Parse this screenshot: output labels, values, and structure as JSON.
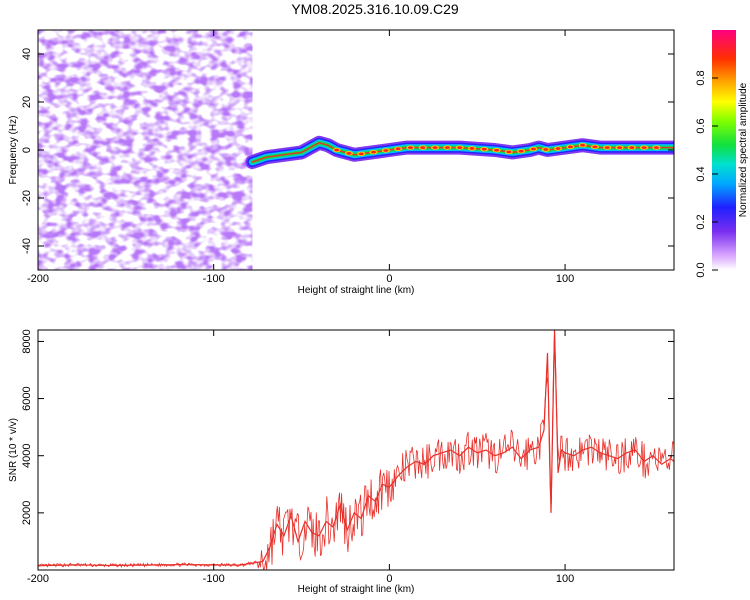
{
  "title": "YM08.2025.316.10.09.C29",
  "colors": {
    "snr_line": "#e8302a",
    "axis": "#000000",
    "noise": "#7a2ff0",
    "ridge_core": "#e8302a"
  },
  "chart_data": [
    {
      "type": "heatmap",
      "name": "spectrogram",
      "xlabel": "Height of straight line (km)",
      "ylabel": "Frequency (Hz)",
      "xlim": [
        -200,
        162
      ],
      "ylim": [
        -50,
        50
      ],
      "x_ticks": [
        -200,
        -100,
        0,
        100
      ],
      "x_tick_labels": [
        "-200",
        "-100",
        "0",
        "100"
      ],
      "y_ticks": [
        -40,
        -20,
        0,
        20,
        40
      ],
      "y_tick_labels": [
        "-40",
        "-20",
        "0",
        "20",
        "40"
      ],
      "noise_region_x": [
        -200,
        -78
      ],
      "ridge": {
        "x": [
          -78,
          -70,
          -60,
          -50,
          -40,
          -35,
          -30,
          -20,
          -10,
          0,
          10,
          20,
          40,
          60,
          70,
          80,
          85,
          90,
          100,
          110,
          120,
          140,
          162
        ],
        "freq": [
          -5,
          -3,
          -2,
          -1,
          3,
          2,
          0,
          -2,
          -1,
          0,
          1,
          1,
          1,
          0,
          -1,
          0,
          1,
          0,
          1,
          2,
          1,
          1,
          1
        ]
      },
      "colorbar": {
        "label": "Normalized spectral amplitude",
        "range": [
          0,
          1
        ],
        "ticks": [
          0.0,
          0.2,
          0.4,
          0.6,
          0.8
        ],
        "tick_labels": [
          "0.0",
          "0.2",
          "0.4",
          "0.6",
          "0.8"
        ]
      }
    },
    {
      "type": "line",
      "name": "snr",
      "xlabel": "Height of straight line (km)",
      "ylabel": "SNR (10 * v/v)",
      "xlim": [
        -200,
        162
      ],
      "ylim": [
        0,
        8400
      ],
      "x_ticks": [
        -200,
        -100,
        0,
        100
      ],
      "x_tick_labels": [
        "-200",
        "-100",
        "0",
        "100"
      ],
      "y_ticks": [
        2000,
        4000,
        6000,
        8000
      ],
      "y_tick_labels": [
        "2000",
        "4000",
        "6000",
        "8000"
      ],
      "series": [
        {
          "name": "SNR",
          "x": [
            -200,
            -180,
            -160,
            -140,
            -120,
            -100,
            -85,
            -72,
            -68,
            -64,
            -60,
            -56,
            -52,
            -48,
            -44,
            -40,
            -36,
            -32,
            -28,
            -24,
            -20,
            -16,
            -12,
            -8,
            -4,
            0,
            5,
            10,
            15,
            20,
            25,
            30,
            35,
            40,
            45,
            50,
            55,
            60,
            65,
            70,
            75,
            80,
            85,
            88,
            90,
            92,
            94,
            96,
            98,
            100,
            105,
            110,
            115,
            120,
            125,
            130,
            135,
            140,
            145,
            150,
            155,
            160,
            162
          ],
          "values": [
            150,
            180,
            160,
            170,
            190,
            180,
            170,
            300,
            800,
            1600,
            1200,
            1900,
            1000,
            1700,
            1300,
            1200,
            1700,
            1500,
            2300,
            1400,
            2000,
            1800,
            2600,
            2400,
            3000,
            2900,
            3300,
            3600,
            3800,
            3700,
            4000,
            4100,
            4200,
            4000,
            4300,
            4100,
            4200,
            4000,
            4100,
            4300,
            3900,
            4200,
            4300,
            4900,
            7600,
            2000,
            8400,
            3400,
            4200,
            4100,
            4000,
            4200,
            4300,
            4100,
            4000,
            3900,
            4100,
            4200,
            3800,
            4000,
            3700,
            3900,
            3800
          ]
        }
      ]
    }
  ]
}
